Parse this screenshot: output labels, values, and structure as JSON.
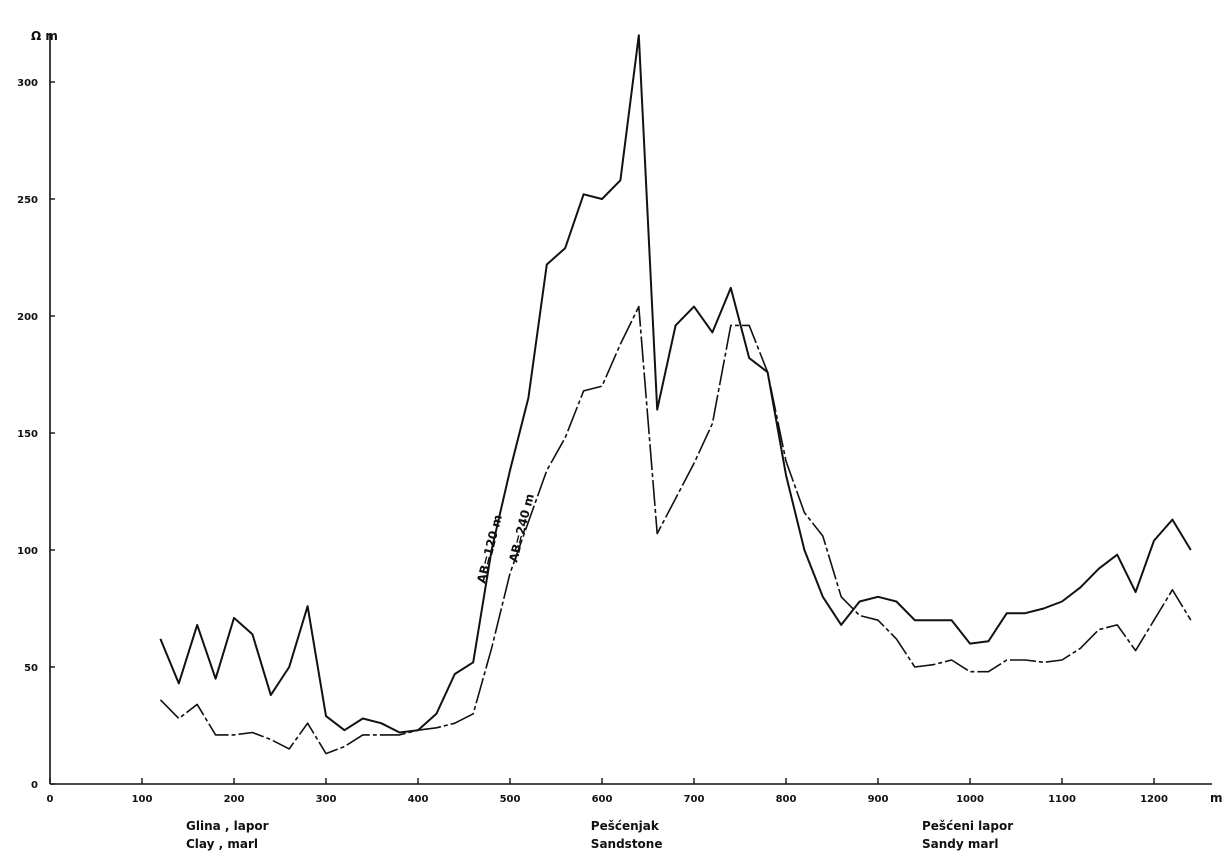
{
  "chart_data": {
    "type": "line",
    "title": "",
    "xlabel": "m",
    "ylabel": "Ω m",
    "xlim": [
      0,
      1250
    ],
    "ylim": [
      0,
      320
    ],
    "x_ticks": [
      0,
      100,
      200,
      300,
      400,
      500,
      600,
      700,
      800,
      900,
      1000,
      1100,
      1200
    ],
    "y_ticks": [
      0,
      50,
      100,
      150,
      200,
      250,
      300
    ],
    "grid": false,
    "series": [
      {
        "name": "AB=120 m",
        "style": "solid",
        "x": [
          120,
          140,
          160,
          180,
          200,
          220,
          240,
          260,
          280,
          300,
          320,
          340,
          360,
          380,
          400,
          420,
          440,
          460,
          480,
          500,
          520,
          540,
          560,
          580,
          600,
          620,
          640,
          660,
          680,
          700,
          720,
          740,
          760,
          780,
          800,
          820,
          840,
          860,
          880,
          900,
          920,
          940,
          960,
          980,
          1000,
          1020,
          1040,
          1060,
          1080,
          1100,
          1120,
          1140,
          1160,
          1180,
          1200,
          1220,
          1240
        ],
        "values": [
          62,
          43,
          68,
          45,
          71,
          64,
          38,
          50,
          76,
          29,
          23,
          28,
          26,
          22,
          23,
          30,
          47,
          52,
          100,
          134,
          165,
          222,
          229,
          252,
          250,
          258,
          320,
          160,
          196,
          204,
          193,
          212,
          182,
          176,
          132,
          100,
          80,
          68,
          78,
          80,
          78,
          70,
          70,
          70,
          60,
          61,
          73,
          73,
          75,
          78,
          84,
          92,
          98,
          82,
          104,
          113,
          100
        ]
      },
      {
        "name": "AB=240 m",
        "style": "dashed",
        "x": [
          120,
          140,
          160,
          180,
          200,
          220,
          240,
          260,
          280,
          300,
          320,
          340,
          360,
          380,
          400,
          420,
          440,
          460,
          480,
          500,
          520,
          540,
          560,
          580,
          600,
          620,
          640,
          660,
          680,
          700,
          720,
          740,
          760,
          780,
          800,
          820,
          840,
          860,
          880,
          900,
          920,
          940,
          960,
          980,
          1000,
          1020,
          1040,
          1060,
          1080,
          1100,
          1120,
          1140,
          1160,
          1180,
          1200,
          1220,
          1240
        ],
        "values": [
          36,
          28,
          34,
          21,
          21,
          22,
          19,
          15,
          26,
          13,
          16,
          21,
          21,
          21,
          23,
          24,
          26,
          30,
          58,
          90,
          112,
          134,
          148,
          168,
          170,
          188,
          204,
          107,
          122,
          137,
          154,
          196,
          196,
          176,
          138,
          116,
          106,
          80,
          72,
          70,
          62,
          50,
          51,
          53,
          48,
          48,
          53,
          53,
          52,
          53,
          58,
          66,
          68,
          57,
          70,
          83,
          70
        ]
      }
    ],
    "zone_labels": [
      {
        "x": 200,
        "line1": "Glina , lapor",
        "line2": "Clay , marl"
      },
      {
        "x": 640,
        "line1": "Pešćenjak",
        "line2": "Sandstone"
      },
      {
        "x": 1000,
        "line1": "Pešćeni lapor",
        "line2": "Sandy marl"
      }
    ],
    "colors": {
      "line": "#111111",
      "axis": "#111111",
      "background": "#ffffff"
    }
  }
}
